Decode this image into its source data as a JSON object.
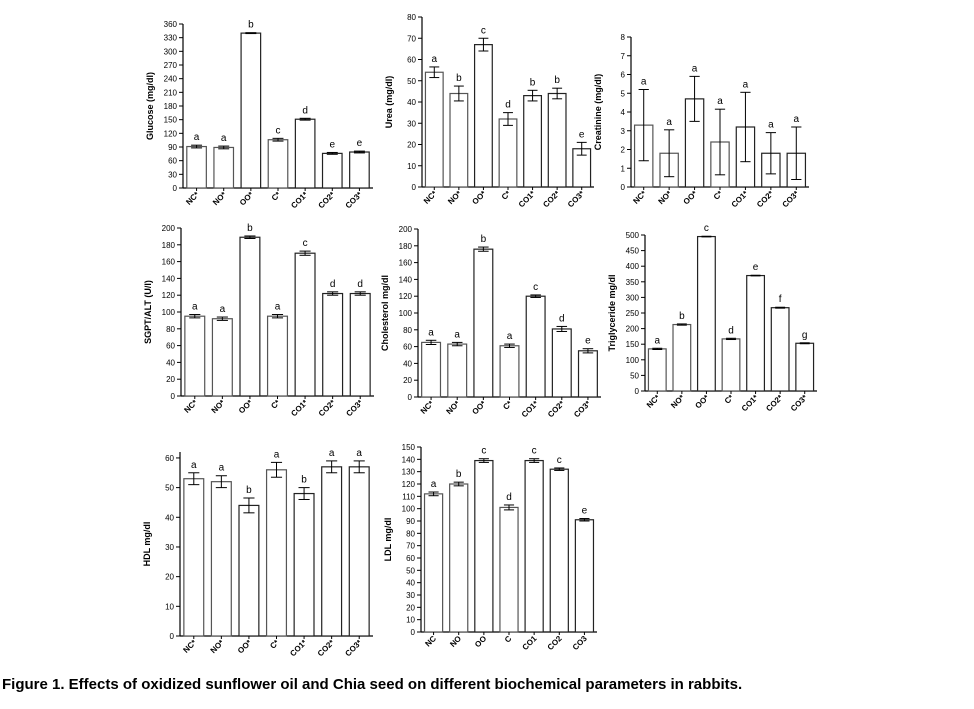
{
  "caption": "Figure 1. Effects of oxidized sunflower oil and Chia seed on different biochemical parameters in rabbits.",
  "chart_data": [
    {
      "type": "bar",
      "ylabel": "Glucose (mg/dl)",
      "ylim": [
        0,
        360
      ],
      "ticks": [
        0,
        30,
        60,
        90,
        120,
        150,
        180,
        210,
        240,
        270,
        300,
        330,
        360
      ],
      "categories": [
        "NC*",
        "NO*",
        "OO*",
        "C*",
        "CO1*",
        "CO2*",
        "CO3*"
      ],
      "values": [
        91,
        89,
        340,
        106,
        151,
        76,
        79
      ],
      "errors": [
        3,
        3,
        1,
        3,
        2,
        2,
        2
      ],
      "letters": [
        "a",
        "a",
        "b",
        "c",
        "d",
        "e",
        "e"
      ]
    },
    {
      "type": "bar",
      "ylabel": "Urea (mg/dl)",
      "ylim": [
        0,
        80
      ],
      "ticks": [
        0,
        10,
        20,
        30,
        40,
        50,
        60,
        70,
        80
      ],
      "categories": [
        "NC*",
        "NO*",
        "OO*",
        "C*",
        "CO1*",
        "CO2*",
        "CO3*"
      ],
      "values": [
        54,
        44,
        67,
        32,
        43,
        44,
        18
      ],
      "errors": [
        2.5,
        3.5,
        3,
        3,
        2.5,
        2.5,
        3
      ],
      "letters": [
        "a",
        "b",
        "c",
        "d",
        "b",
        "b",
        "e"
      ]
    },
    {
      "type": "bar",
      "ylabel": "Creatinine (mg/dl)",
      "ylim": [
        0,
        8
      ],
      "ticks": [
        0,
        1,
        2,
        3,
        4,
        5,
        6,
        7,
        8
      ],
      "categories": [
        "NC*",
        "NO*",
        "OO*",
        "C*",
        "CO1*",
        "CO2*",
        "CO3*"
      ],
      "values": [
        3.3,
        1.8,
        4.7,
        2.4,
        3.2,
        1.8,
        1.8
      ],
      "errors": [
        1.9,
        1.25,
        1.2,
        1.75,
        1.85,
        1.1,
        1.4
      ],
      "letters": [
        "a",
        "a",
        "a",
        "a",
        "a",
        "a",
        "a"
      ]
    },
    {
      "type": "bar",
      "ylabel": "SGPT/ALT (U/l)",
      "ylim": [
        0,
        200
      ],
      "ticks": [
        0,
        20,
        40,
        60,
        80,
        100,
        120,
        140,
        160,
        180,
        200
      ],
      "categories": [
        "NC*",
        "NO*",
        "OO*",
        "C*",
        "CO1*",
        "CO2*",
        "CO3*"
      ],
      "values": [
        95,
        92,
        189,
        95,
        170,
        122,
        122
      ],
      "errors": [
        2,
        2,
        1.5,
        2,
        2.5,
        2,
        2
      ],
      "letters": [
        "a",
        "a",
        "b",
        "a",
        "c",
        "d",
        "d"
      ]
    },
    {
      "type": "bar",
      "ylabel": "Cholesterol mg/dl",
      "ylim": [
        0,
        200
      ],
      "ticks": [
        0,
        20,
        40,
        60,
        80,
        100,
        120,
        140,
        160,
        180,
        200
      ],
      "categories": [
        "NC*",
        "NO*",
        "OO*",
        "C*",
        "CO1*",
        "CO2*",
        "CO3*"
      ],
      "values": [
        65,
        63,
        176,
        61,
        120,
        81,
        55
      ],
      "errors": [
        2.5,
        2,
        2.5,
        2,
        1.5,
        3,
        2.5
      ],
      "letters": [
        "a",
        "a",
        "b",
        "a",
        "c",
        "d",
        "e"
      ]
    },
    {
      "type": "bar",
      "ylabel": "Triglyceride mg/dl",
      "ylim": [
        0,
        500
      ],
      "ticks": [
        0,
        50,
        100,
        150,
        200,
        250,
        300,
        350,
        400,
        450,
        500
      ],
      "categories": [
        "NC*",
        "NO*",
        "OO*",
        "C*",
        "CO1*",
        "CO2*",
        "CO3*"
      ],
      "values": [
        135,
        213,
        495,
        167,
        370,
        267,
        153
      ],
      "errors": [
        2,
        2,
        1,
        2,
        1,
        1.5,
        1.5
      ],
      "letters": [
        "a",
        "b",
        "c",
        "d",
        "e",
        "f",
        "g"
      ]
    },
    {
      "type": "bar",
      "ylabel": "HDL mg/dl",
      "ylim": [
        0,
        62
      ],
      "ticks": [
        0,
        10,
        20,
        30,
        40,
        50,
        60
      ],
      "categories": [
        "NC*",
        "NO*",
        "OO*",
        "C*",
        "CO1*",
        "CO2*",
        "CO3*"
      ],
      "values": [
        53,
        52,
        44,
        56,
        48,
        57,
        57
      ],
      "errors": [
        2,
        2,
        2.5,
        2.5,
        2,
        2,
        2
      ],
      "letters": [
        "a",
        "a",
        "b",
        "a",
        "b",
        "a",
        "a"
      ]
    },
    {
      "type": "bar",
      "ylabel": "LDL mg/dl",
      "ylim": [
        0,
        150
      ],
      "ticks": [
        0,
        10,
        20,
        30,
        40,
        50,
        60,
        70,
        80,
        90,
        100,
        110,
        120,
        130,
        140,
        150
      ],
      "categories": [
        "NC",
        "NO",
        "OO",
        "C",
        "CO1",
        "CO2",
        "CO3"
      ],
      "values": [
        112,
        120,
        139,
        101,
        139,
        132,
        91
      ],
      "errors": [
        1.5,
        1.5,
        1.5,
        2,
        1.5,
        1,
        1
      ],
      "letters": [
        "a",
        "b",
        "c",
        "d",
        "c",
        "c",
        "e"
      ]
    }
  ]
}
